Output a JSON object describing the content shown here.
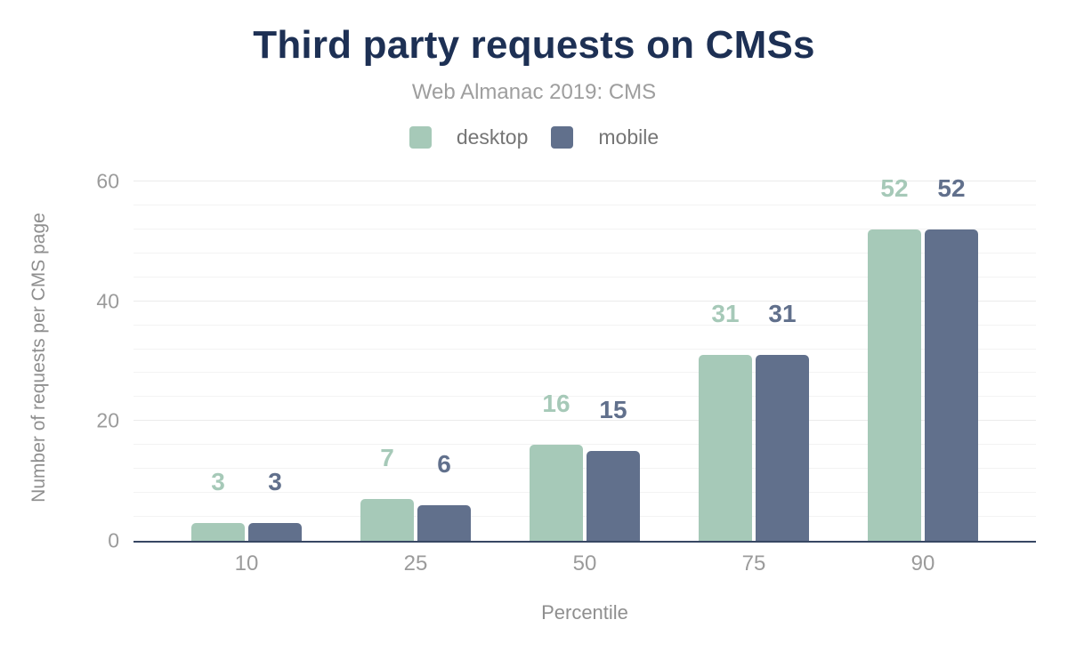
{
  "chart_data": {
    "type": "bar",
    "title": "Third party requests on CMSs",
    "subtitle": "Web Almanac 2019: CMS",
    "xlabel": "Percentile",
    "ylabel": "Number of requests per CMS page",
    "categories": [
      "10",
      "25",
      "50",
      "75",
      "90"
    ],
    "series": [
      {
        "name": "desktop",
        "color": "#a6c9b8",
        "values": [
          3,
          7,
          16,
          31,
          52
        ]
      },
      {
        "name": "mobile",
        "color": "#61708c",
        "values": [
          3,
          6,
          15,
          31,
          52
        ]
      }
    ],
    "ylim": [
      0,
      60
    ],
    "y_ticks": [
      0,
      20,
      40,
      60
    ],
    "gridline_step": 4,
    "grid": true,
    "legend_position": "top",
    "bar_labels_shown": true
  },
  "colors": {
    "background": "#ffffff",
    "title": "#1d3054",
    "subtitle": "#9e9e9e",
    "legend_text": "#757575",
    "tick_text": "#9b9b9b",
    "axis_title_text": "#8f8f8f",
    "axis_line": "#374763",
    "gridline_major": "#ebebeb",
    "gridline_minor": "#f3f3f3"
  }
}
